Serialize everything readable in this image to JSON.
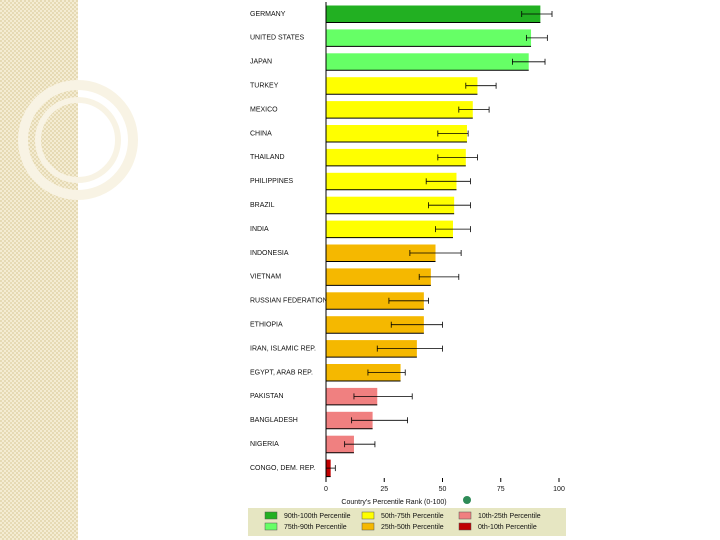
{
  "chart_data": {
    "type": "bar",
    "orientation": "horizontal",
    "categories": [
      "GERMANY",
      "UNITED STATES",
      "JAPAN",
      "TURKEY",
      "MEXICO",
      "CHINA",
      "THAILAND",
      "PHILIPPINES",
      "BRAZIL",
      "INDIA",
      "INDONESIA",
      "VIETNAM",
      "RUSSIAN FEDERATION",
      "ETHIOPIA",
      "IRAN, ISLAMIC REP.",
      "EGYPT, ARAB REP.",
      "PAKISTAN",
      "BANGLADESH",
      "NIGERIA",
      "CONGO, DEM. REP."
    ],
    "values": [
      92,
      88,
      87,
      65,
      63,
      60.5,
      60,
      56,
      55,
      54.5,
      47,
      45,
      42,
      42,
      39,
      32,
      22,
      20,
      12,
      2
    ],
    "errors": [
      [
        84,
        97
      ],
      [
        86,
        95
      ],
      [
        80,
        94
      ],
      [
        60,
        73
      ],
      [
        57,
        70
      ],
      [
        48,
        61
      ],
      [
        48,
        65
      ],
      [
        43,
        62
      ],
      [
        44,
        62
      ],
      [
        47,
        62
      ],
      [
        36,
        58
      ],
      [
        40,
        57
      ],
      [
        27,
        44
      ],
      [
        28,
        50
      ],
      [
        22,
        50
      ],
      [
        18,
        34
      ],
      [
        12,
        37
      ],
      [
        11,
        35
      ],
      [
        8,
        21
      ],
      [
        0,
        4
      ]
    ],
    "colors": [
      "#22b022",
      "#66ff66",
      "#66ff66",
      "#ffff00",
      "#ffff00",
      "#ffff00",
      "#ffff00",
      "#ffff00",
      "#ffff00",
      "#ffff00",
      "#f5b800",
      "#f5b800",
      "#f5b800",
      "#f5b800",
      "#f5b800",
      "#f5b800",
      "#f08080",
      "#f08080",
      "#f08080",
      "#c00000"
    ],
    "xlim": [
      0,
      100
    ],
    "xticks": [
      0,
      25,
      50,
      75,
      100
    ],
    "xlabel": "Country's Percentile Rank (0-100)",
    "legend": [
      {
        "name": "90th-100th Percentile",
        "color": "#22b022"
      },
      {
        "name": "50th-75th Percentile",
        "color": "#ffff00"
      },
      {
        "name": "10th-25th Percentile",
        "color": "#f08080"
      },
      {
        "name": "75th-90th Percentile",
        "color": "#66ff66"
      },
      {
        "name": "25th-50th Percentile",
        "color": "#f5b800"
      },
      {
        "name": "0th-10th Percentile",
        "color": "#c00000"
      }
    ]
  }
}
